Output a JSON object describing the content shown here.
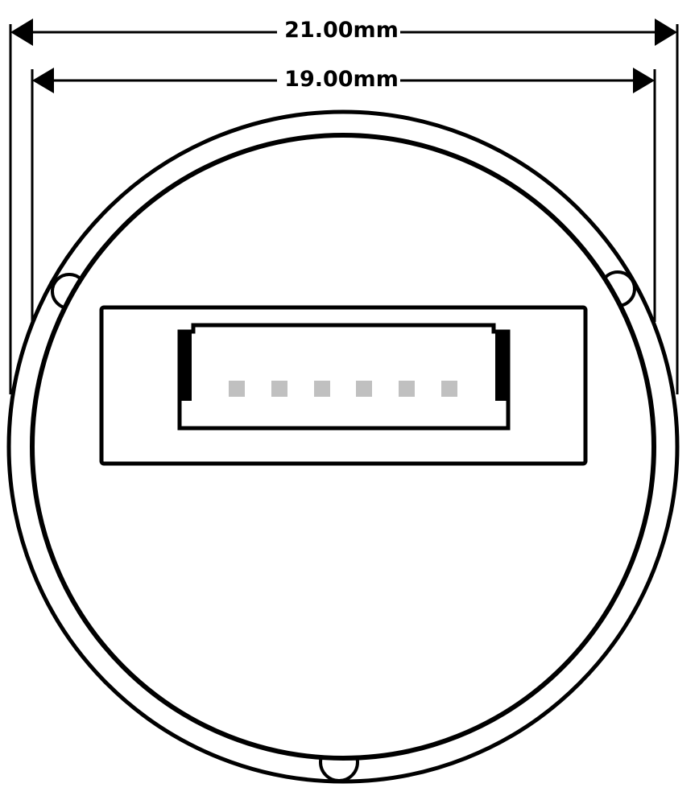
{
  "dimensions": {
    "outer": {
      "label": "21.00mm",
      "value": 21.0,
      "unit": "mm"
    },
    "inner": {
      "label": "19.00mm",
      "value": 19.0,
      "unit": "mm"
    }
  },
  "connector": {
    "pin_count": 6
  },
  "colors": {
    "stroke": "#000000",
    "pin": "#c0c0c0",
    "background": "#ffffff"
  }
}
